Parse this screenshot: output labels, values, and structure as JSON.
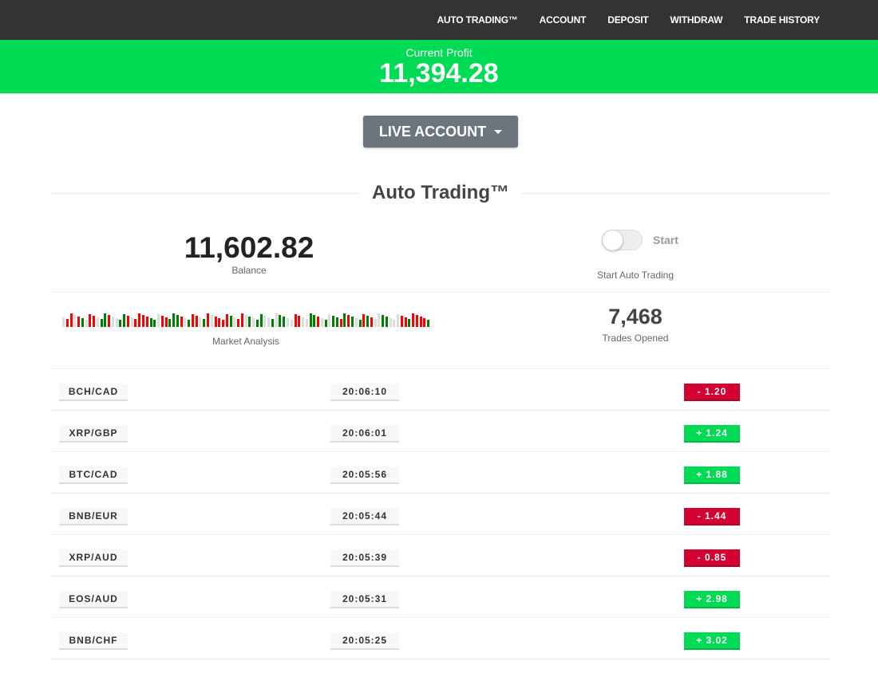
{
  "nav": [
    "AUTO TRADING™",
    "ACCOUNT",
    "DEPOSIT",
    "WITHDRAW",
    "TRADE HISTORY"
  ],
  "profit": {
    "label": "Current Profit",
    "value": "11,394.28"
  },
  "account_button": "LIVE ACCOUNT",
  "section_title": "Auto Trading™",
  "balance": {
    "value": "11,602.82",
    "label": "Balance"
  },
  "auto_toggle": {
    "label": "Start",
    "caption": "Start Auto Trading",
    "on": false
  },
  "market_analysis": {
    "label": "Market Analysis",
    "bars": "nrrnrgnrrnggrnnggrnrrrrggnrrgggrngrrngrnrrrrgnrrngnggnngnggnnrrnnggrngnggrgrgngrgrnnggnnnrrgrrrrg",
    "colors": {
      "r": "#ff0000",
      "g": "#008000",
      "n": "#dddddd"
    }
  },
  "trades_opened": {
    "value": "7,468",
    "label": "Trades Opened"
  },
  "colors": {
    "positive": "#00db55",
    "negative": "#d50032"
  },
  "trades": [
    {
      "pair": "BCH/CAD",
      "time": "20:06:10",
      "amount": "-  1.20",
      "dir": "down"
    },
    {
      "pair": "XRP/GBP",
      "time": "20:06:01",
      "amount": "+  1.24",
      "dir": "up"
    },
    {
      "pair": "BTC/CAD",
      "time": "20:05:56",
      "amount": "+  1.88",
      "dir": "up"
    },
    {
      "pair": "BNB/EUR",
      "time": "20:05:44",
      "amount": "-  1.44",
      "dir": "down"
    },
    {
      "pair": "XRP/AUD",
      "time": "20:05:39",
      "amount": "-  0.85",
      "dir": "down"
    },
    {
      "pair": "EOS/AUD",
      "time": "20:05:31",
      "amount": "+  2.98",
      "dir": "up"
    },
    {
      "pair": "BNB/CHF",
      "time": "20:05:25",
      "amount": "+  3.02",
      "dir": "up"
    }
  ]
}
